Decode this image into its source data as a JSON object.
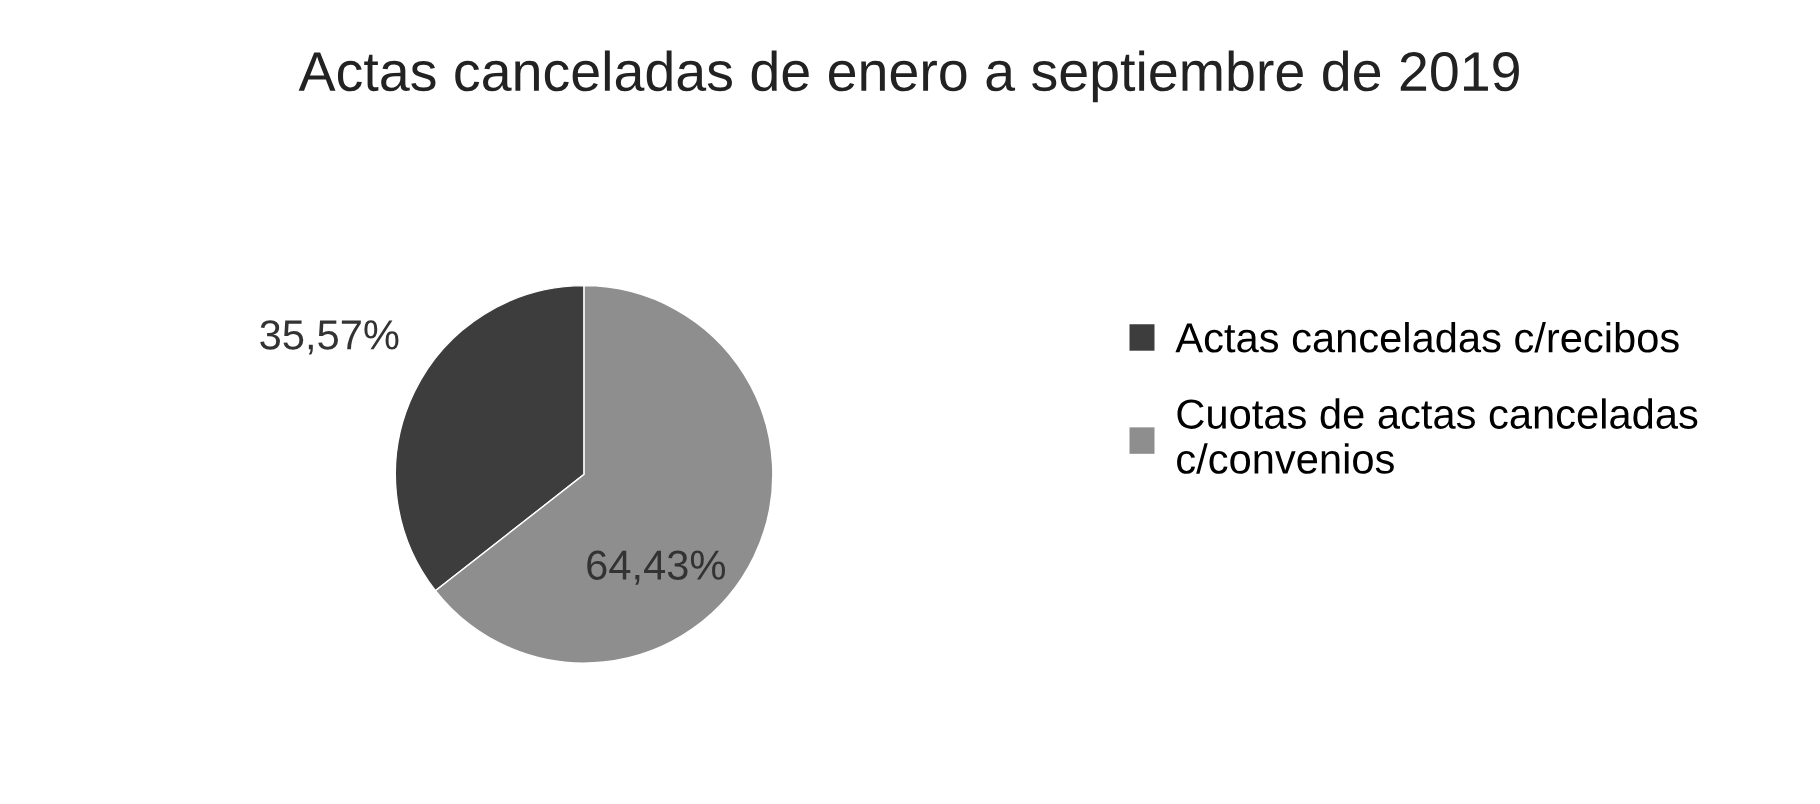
{
  "chart_data": {
    "type": "pie",
    "title": "Actas canceladas de enero a septiembre de 2019",
    "categories": [
      "Actas canceladas c/recibos",
      "Cuotas de actas canceladas\nc/convenios"
    ],
    "values": [
      35.57,
      64.43
    ],
    "value_labels": [
      "35,57%",
      "64,43%"
    ],
    "colors": [
      "#3d3d3d",
      "#8e8e8e"
    ],
    "legend": "right"
  }
}
